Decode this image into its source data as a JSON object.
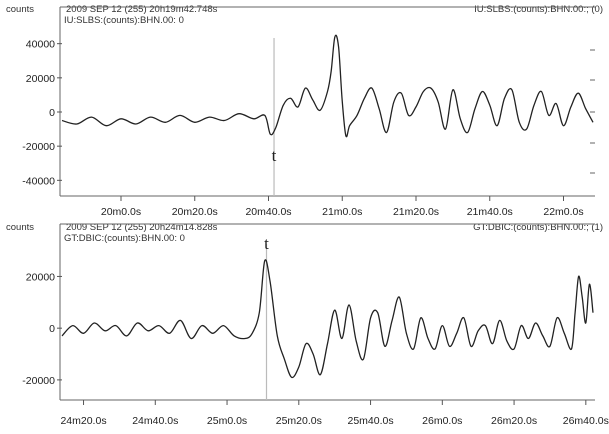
{
  "chart_data": [
    {
      "type": "line",
      "header": {
        "y_unit": "counts",
        "start_time": "2009 SEP 12 (255)  20h19m42.748s",
        "channel_right": "IU:SLBS:(counts):BHN.00:; (0)",
        "channel_left": "IU:SLBS:(counts):BHN.00: 0"
      },
      "pick_label": "t",
      "pick_x": "20m41.5s",
      "x_ticks": [
        "20m0.0s",
        "20m20.0s",
        "20m40.0s",
        "21m0.0s",
        "21m20.0s",
        "21m40.0s",
        "22m0.0s"
      ],
      "x_tick_seconds": [
        0,
        20,
        40,
        60,
        80,
        100,
        120
      ],
      "y_ticks": [
        40000,
        20000,
        0,
        -20000,
        -40000
      ],
      "y_tick_labels": [
        "40000",
        "20000",
        "0",
        "-20000",
        "-40000"
      ],
      "ylim": [
        -48000,
        48000
      ],
      "xlim_seconds": [
        -16,
        128
      ],
      "pick_seconds": 41.5,
      "line_color": "#222222",
      "series": [
        {
          "x": [
            -16,
            -12,
            -8,
            -4,
            0,
            4,
            8,
            12,
            16,
            20,
            24,
            28,
            32,
            36,
            39,
            40.5,
            42,
            44,
            46,
            48,
            50,
            52,
            54,
            56,
            57,
            58,
            59,
            60,
            61,
            62,
            64,
            66,
            68,
            70,
            72,
            74,
            76,
            78,
            80,
            82,
            84,
            86,
            88,
            90,
            92,
            94,
            96,
            98,
            100,
            102,
            104,
            106,
            108,
            110,
            112,
            114,
            116,
            118,
            120,
            122,
            124,
            126,
            128
          ],
          "y": [
            -5000,
            -7000,
            -3000,
            -8000,
            -4000,
            -7000,
            -3000,
            -6000,
            -2000,
            -6000,
            -3000,
            -5000,
            -1000,
            -4000,
            -2000,
            -13000,
            -9000,
            4000,
            8000,
            3000,
            14000,
            7000,
            1000,
            12000,
            24000,
            44000,
            38000,
            6000,
            -14000,
            -8000,
            -2000,
            8000,
            14000,
            2000,
            -12000,
            6000,
            11000,
            -2000,
            3000,
            12000,
            14000,
            6000,
            -10000,
            13000,
            -4000,
            -12000,
            2000,
            12000,
            4000,
            -8000,
            8000,
            13000,
            -6000,
            -10000,
            4000,
            12000,
            -2000,
            5000,
            -8000,
            3000,
            11000,
            2000,
            -6000
          ]
        }
      ]
    },
    {
      "type": "line",
      "header": {
        "y_unit": "counts",
        "start_time": "2009 SEP 12 (255)  20h24m14.828s",
        "channel_right": "GT:DBIC:(counts):BHN.00:; (1)",
        "channel_left": "GT:DBIC:(counts):BHN.00: 0"
      },
      "pick_label": "t",
      "pick_x": "25m11.0s",
      "x_ticks": [
        "24m20.0s",
        "24m40.0s",
        "25m0.0s",
        "25m20.0s",
        "25m40.0s",
        "26m0.0s",
        "26m20.0s",
        "26m40.0s"
      ],
      "x_tick_seconds": [
        0,
        20,
        40,
        60,
        80,
        100,
        120,
        140
      ],
      "y_ticks": [
        20000,
        0,
        -20000
      ],
      "y_tick_labels": [
        "20000",
        "0",
        "-20000"
      ],
      "ylim": [
        -27000,
        31000
      ],
      "xlim_seconds": [
        -6,
        142
      ],
      "pick_seconds": 51,
      "line_color": "#222222",
      "series": [
        {
          "x": [
            -6,
            -3,
            0,
            3,
            6,
            9,
            12,
            15,
            18,
            21,
            24,
            27,
            30,
            33,
            36,
            39,
            42,
            45,
            47,
            49,
            50.5,
            52,
            54,
            56,
            58,
            60,
            62,
            64,
            66,
            68,
            70,
            72,
            74,
            76,
            78,
            80,
            82,
            84,
            86,
            88,
            90,
            92,
            94,
            96,
            98,
            100,
            102,
            104,
            106,
            108,
            110,
            112,
            114,
            116,
            118,
            120,
            122,
            124,
            126,
            128,
            130,
            132,
            134,
            136,
            137,
            138,
            139,
            140,
            141,
            142
          ],
          "y": [
            -3000,
            1000,
            -2000,
            2000,
            -1000,
            1000,
            -3000,
            2000,
            -1000,
            1000,
            -2000,
            3000,
            -4000,
            1000,
            -2000,
            1000,
            -3000,
            -4000,
            -2000,
            6000,
            26000,
            18000,
            -3000,
            -12000,
            -19000,
            -15000,
            -6000,
            -10000,
            -18000,
            -6000,
            7000,
            -4000,
            9000,
            -5000,
            -12000,
            4000,
            6000,
            -7000,
            3000,
            12000,
            -2000,
            -8000,
            4000,
            -4000,
            -8000,
            1000,
            -7000,
            -2000,
            4000,
            -7000,
            -1000,
            1000,
            -6000,
            3000,
            -5000,
            -8000,
            1000,
            -4000,
            2000,
            -3000,
            -7000,
            4000,
            -2000,
            -8000,
            6000,
            20000,
            12000,
            2000,
            17000,
            6000
          ]
        }
      ]
    }
  ]
}
